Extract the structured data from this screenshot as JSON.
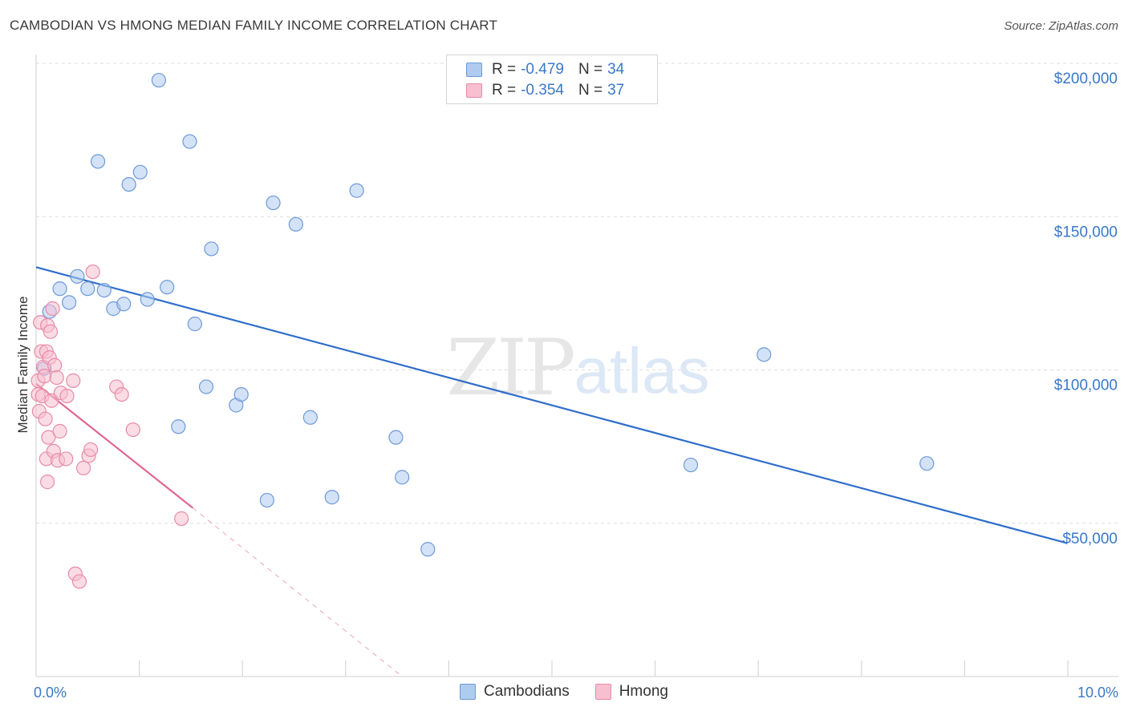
{
  "header": {
    "title": "CAMBODIAN VS HMONG MEDIAN FAMILY INCOME CORRELATION CHART",
    "source": "Source: ZipAtlas.com"
  },
  "watermark": {
    "zip": "ZIP",
    "atlas": "atlas"
  },
  "legend": {
    "rows": [
      {
        "r_label": "R =",
        "r_value": "-0.479",
        "n_label": "N =",
        "n_value": "34"
      },
      {
        "r_label": "R =",
        "r_value": "-0.354",
        "n_label": "N =",
        "n_value": "37"
      }
    ],
    "bottom": [
      "Cambodians",
      "Hmong"
    ]
  },
  "colors": {
    "cambodians_fill": "#aecbf0",
    "cambodians_stroke": "#6d9ad8",
    "cambodians_line": "#2f6ecb",
    "hmong_fill": "#f7bfd0",
    "hmong_stroke": "#e98aa8",
    "hmong_line": "#e0678f",
    "axis_label": "#3a78c8",
    "grid": "#dddddd"
  },
  "chart_data": {
    "type": "scatter",
    "title": "CAMBODIAN VS HMONG MEDIAN FAMILY INCOME CORRELATION CHART",
    "xlabel": "",
    "ylabel": "Median Family Income",
    "xlim": [
      0,
      10
    ],
    "ylim": [
      0,
      205000
    ],
    "x_tick_labels": [
      "0.0%",
      "10.0%"
    ],
    "y_ticks": [
      50000,
      100000,
      150000,
      200000
    ],
    "y_tick_labels": [
      "$50,000",
      "$100,000",
      "$150,000",
      "$200,000"
    ],
    "grid": true,
    "series": [
      {
        "name": "Cambodians",
        "r": -0.479,
        "n": 34,
        "trend": {
          "x": [
            0,
            10
          ],
          "y": [
            133500,
            43500
          ],
          "dashed_from_x": null
        },
        "points": [
          [
            0.08,
            100500
          ],
          [
            0.13,
            119000
          ],
          [
            0.23,
            126500
          ],
          [
            0.32,
            122000
          ],
          [
            0.4,
            130500
          ],
          [
            0.5,
            126500
          ],
          [
            0.6,
            168000
          ],
          [
            0.66,
            126000
          ],
          [
            0.75,
            120000
          ],
          [
            0.85,
            121500
          ],
          [
            0.9,
            160500
          ],
          [
            1.01,
            164500
          ],
          [
            1.08,
            123000
          ],
          [
            1.19,
            194500
          ],
          [
            1.27,
            127000
          ],
          [
            1.38,
            81500
          ],
          [
            1.49,
            174500
          ],
          [
            1.54,
            115000
          ],
          [
            1.65,
            94500
          ],
          [
            1.7,
            139500
          ],
          [
            1.94,
            88500
          ],
          [
            1.99,
            92000
          ],
          [
            2.24,
            57500
          ],
          [
            2.3,
            154500
          ],
          [
            2.52,
            147500
          ],
          [
            2.66,
            84500
          ],
          [
            2.87,
            58500
          ],
          [
            3.11,
            158500
          ],
          [
            3.49,
            78000
          ],
          [
            3.55,
            65000
          ],
          [
            3.8,
            41500
          ],
          [
            6.35,
            69000
          ],
          [
            7.06,
            105000
          ],
          [
            8.64,
            69500
          ]
        ]
      },
      {
        "name": "Hmong",
        "r": -0.354,
        "n": 37,
        "trend": {
          "x": [
            0,
            1.52
          ],
          "y": [
            95500,
            55000
          ],
          "dashed_to": [
            3.55,
            0
          ]
        },
        "points": [
          [
            0.02,
            96500
          ],
          [
            0.02,
            92000
          ],
          [
            0.03,
            86500
          ],
          [
            0.04,
            115500
          ],
          [
            0.05,
            106000
          ],
          [
            0.06,
            91500
          ],
          [
            0.07,
            101000
          ],
          [
            0.08,
            98000
          ],
          [
            0.09,
            84000
          ],
          [
            0.1,
            106000
          ],
          [
            0.1,
            71000
          ],
          [
            0.11,
            114500
          ],
          [
            0.11,
            63500
          ],
          [
            0.12,
            78000
          ],
          [
            0.13,
            104000
          ],
          [
            0.14,
            112500
          ],
          [
            0.15,
            90000
          ],
          [
            0.16,
            120000
          ],
          [
            0.17,
            73500
          ],
          [
            0.18,
            101500
          ],
          [
            0.2,
            97500
          ],
          [
            0.21,
            70500
          ],
          [
            0.23,
            80000
          ],
          [
            0.24,
            92500
          ],
          [
            0.29,
            71000
          ],
          [
            0.3,
            91500
          ],
          [
            0.36,
            96500
          ],
          [
            0.38,
            33500
          ],
          [
            0.42,
            31000
          ],
          [
            0.46,
            68000
          ],
          [
            0.51,
            72000
          ],
          [
            0.53,
            74000
          ],
          [
            0.55,
            132000
          ],
          [
            0.78,
            94500
          ],
          [
            0.83,
            92000
          ],
          [
            0.94,
            80500
          ],
          [
            1.41,
            51500
          ]
        ]
      }
    ]
  }
}
